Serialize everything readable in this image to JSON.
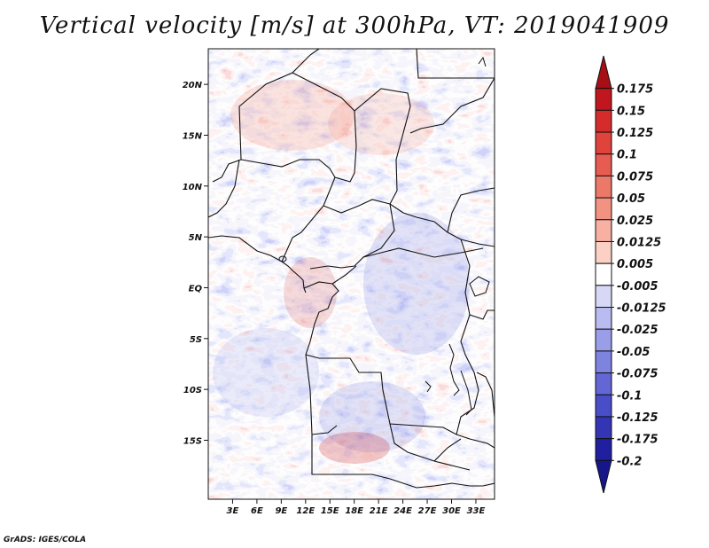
{
  "title": "Vertical velocity [m/s] at 300hPa, VT: 2019041909",
  "credit": "GrADS: IGES/COLA",
  "map": {
    "lon_range": [
      0,
      35.3
    ],
    "lat_range": [
      -20.8,
      23.5
    ],
    "lat_ticks": [
      {
        "value": 20,
        "label": "20N"
      },
      {
        "value": 15,
        "label": "15N"
      },
      {
        "value": 10,
        "label": "10N"
      },
      {
        "value": 5,
        "label": "5N"
      },
      {
        "value": 0,
        "label": "EQ"
      },
      {
        "value": -5,
        "label": "5S"
      },
      {
        "value": -10,
        "label": "10S"
      },
      {
        "value": -15,
        "label": "15S"
      }
    ],
    "lon_ticks": [
      {
        "value": 3,
        "label": "3E"
      },
      {
        "value": 6,
        "label": "6E"
      },
      {
        "value": 9,
        "label": "9E"
      },
      {
        "value": 12,
        "label": "12E"
      },
      {
        "value": 15,
        "label": "15E"
      },
      {
        "value": 18,
        "label": "18E"
      },
      {
        "value": 21,
        "label": "21E"
      },
      {
        "value": 24,
        "label": "24E"
      },
      {
        "value": 27,
        "label": "27E"
      },
      {
        "value": 30,
        "label": "30E"
      },
      {
        "value": 33,
        "label": "33E"
      }
    ]
  },
  "colorbar": {
    "labels": [
      "0.175",
      "0.15",
      "0.125",
      "0.1",
      "0.075",
      "0.05",
      "0.025",
      "0.0125",
      "0.005",
      "-0.005",
      "-0.0125",
      "-0.025",
      "-0.05",
      "-0.075",
      "-0.1",
      "-0.125",
      "-0.175",
      "-0.2"
    ],
    "colors": [
      "#a50f15",
      "#c0161d",
      "#d52b2b",
      "#e0423c",
      "#e65c50",
      "#ec7868",
      "#f29382",
      "#f7b0a2",
      "#fbd0c5",
      "#ffffff",
      "#d7d8f6",
      "#b9bcf0",
      "#9a9ee9",
      "#7e83e0",
      "#6367d6",
      "#4a4dc8",
      "#3335b5",
      "#1f1fa0",
      "#16168a"
    ]
  }
}
